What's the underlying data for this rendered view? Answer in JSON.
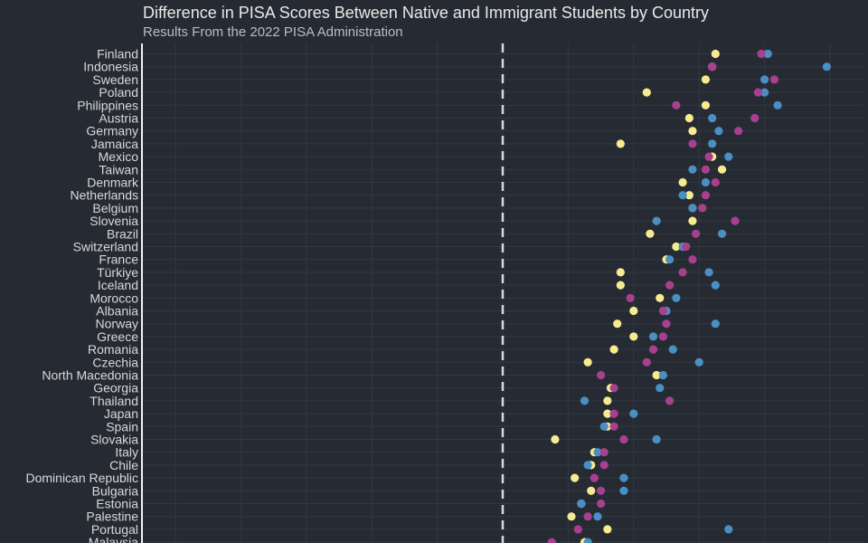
{
  "chart_data": {
    "type": "scatter",
    "title": "Difference in PISA Scores Between Native and Immigrant Students by Country",
    "subtitle": "Results From the 2022 PISA Administration",
    "reference_line": {
      "x": 0,
      "style": "dashed"
    },
    "xlim": [
      -110,
      110
    ],
    "grid": true,
    "colors": {
      "yellow": "#f7eb8f",
      "blue": "#4a8fc4",
      "purple": "#a8408f"
    },
    "categories": [
      "Finland",
      "Indonesia",
      "Sweden",
      "Poland",
      "Philippines",
      "Austria",
      "Germany",
      "Jamaica",
      "Mexico",
      "Taiwan",
      "Denmark",
      "Netherlands",
      "Belgium",
      "Slovenia",
      "Brazil",
      "Switzerland",
      "France",
      "Türkiye",
      "Iceland",
      "Morocco",
      "Albania",
      "Norway",
      "Greece",
      "Romania",
      "Czechia",
      "North Macedonia",
      "Georgia",
      "Thailand",
      "Japan",
      "Spain",
      "Slovakia",
      "Italy",
      "Chile",
      "Dominican Republic",
      "Bulgaria",
      "Estonia",
      "Palestine",
      "Portugal",
      "Malaysia"
    ],
    "series": [
      {
        "color": "yellow",
        "values": [
          65,
          64,
          62,
          44,
          62,
          57,
          58,
          36,
          64,
          67,
          55,
          57,
          58,
          58,
          45,
          53,
          50,
          36,
          36,
          48,
          40,
          35,
          40,
          34,
          26,
          47,
          33,
          32,
          32,
          32,
          16,
          28,
          27,
          22,
          27,
          24,
          21,
          32,
          25
        ]
      },
      {
        "color": "blue",
        "values": [
          81,
          99,
          80,
          80,
          84,
          64,
          66,
          64,
          69,
          58,
          62,
          55,
          58,
          47,
          67,
          55,
          51,
          63,
          65,
          53,
          50,
          65,
          46,
          52,
          60,
          49,
          48,
          25,
          40,
          31,
          47,
          29,
          26,
          37,
          37,
          24,
          29,
          69,
          26
        ]
      },
      {
        "color": "purple",
        "values": [
          79,
          64,
          83,
          78,
          53,
          77,
          72,
          58,
          63,
          62,
          65,
          62,
          61,
          71,
          59,
          56,
          58,
          55,
          51,
          39,
          49,
          50,
          49,
          46,
          44,
          30,
          34,
          51,
          34,
          34,
          37,
          31,
          31,
          28,
          30,
          30,
          26,
          23,
          15
        ]
      }
    ]
  }
}
